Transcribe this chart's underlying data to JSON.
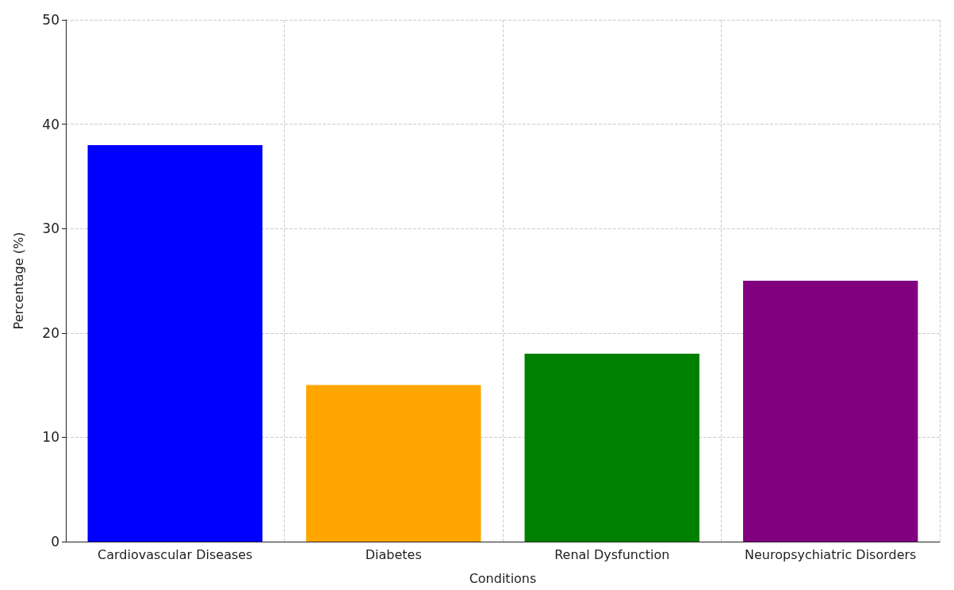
{
  "chart_data": {
    "type": "bar",
    "xlabel": "Conditions",
    "ylabel": "Percentage (%)",
    "categories": [
      "Cardiovascular Diseases",
      "Diabetes",
      "Renal Dysfunction",
      "Neuropsychiatric Disorders"
    ],
    "values": [
      38,
      15,
      18,
      25
    ],
    "colors": [
      "#0000ff",
      "#ffa500",
      "#008000",
      "#800080"
    ],
    "ylim": [
      0,
      50
    ],
    "yticks": [
      0,
      10,
      20,
      30,
      40,
      50
    ],
    "grid": true
  }
}
